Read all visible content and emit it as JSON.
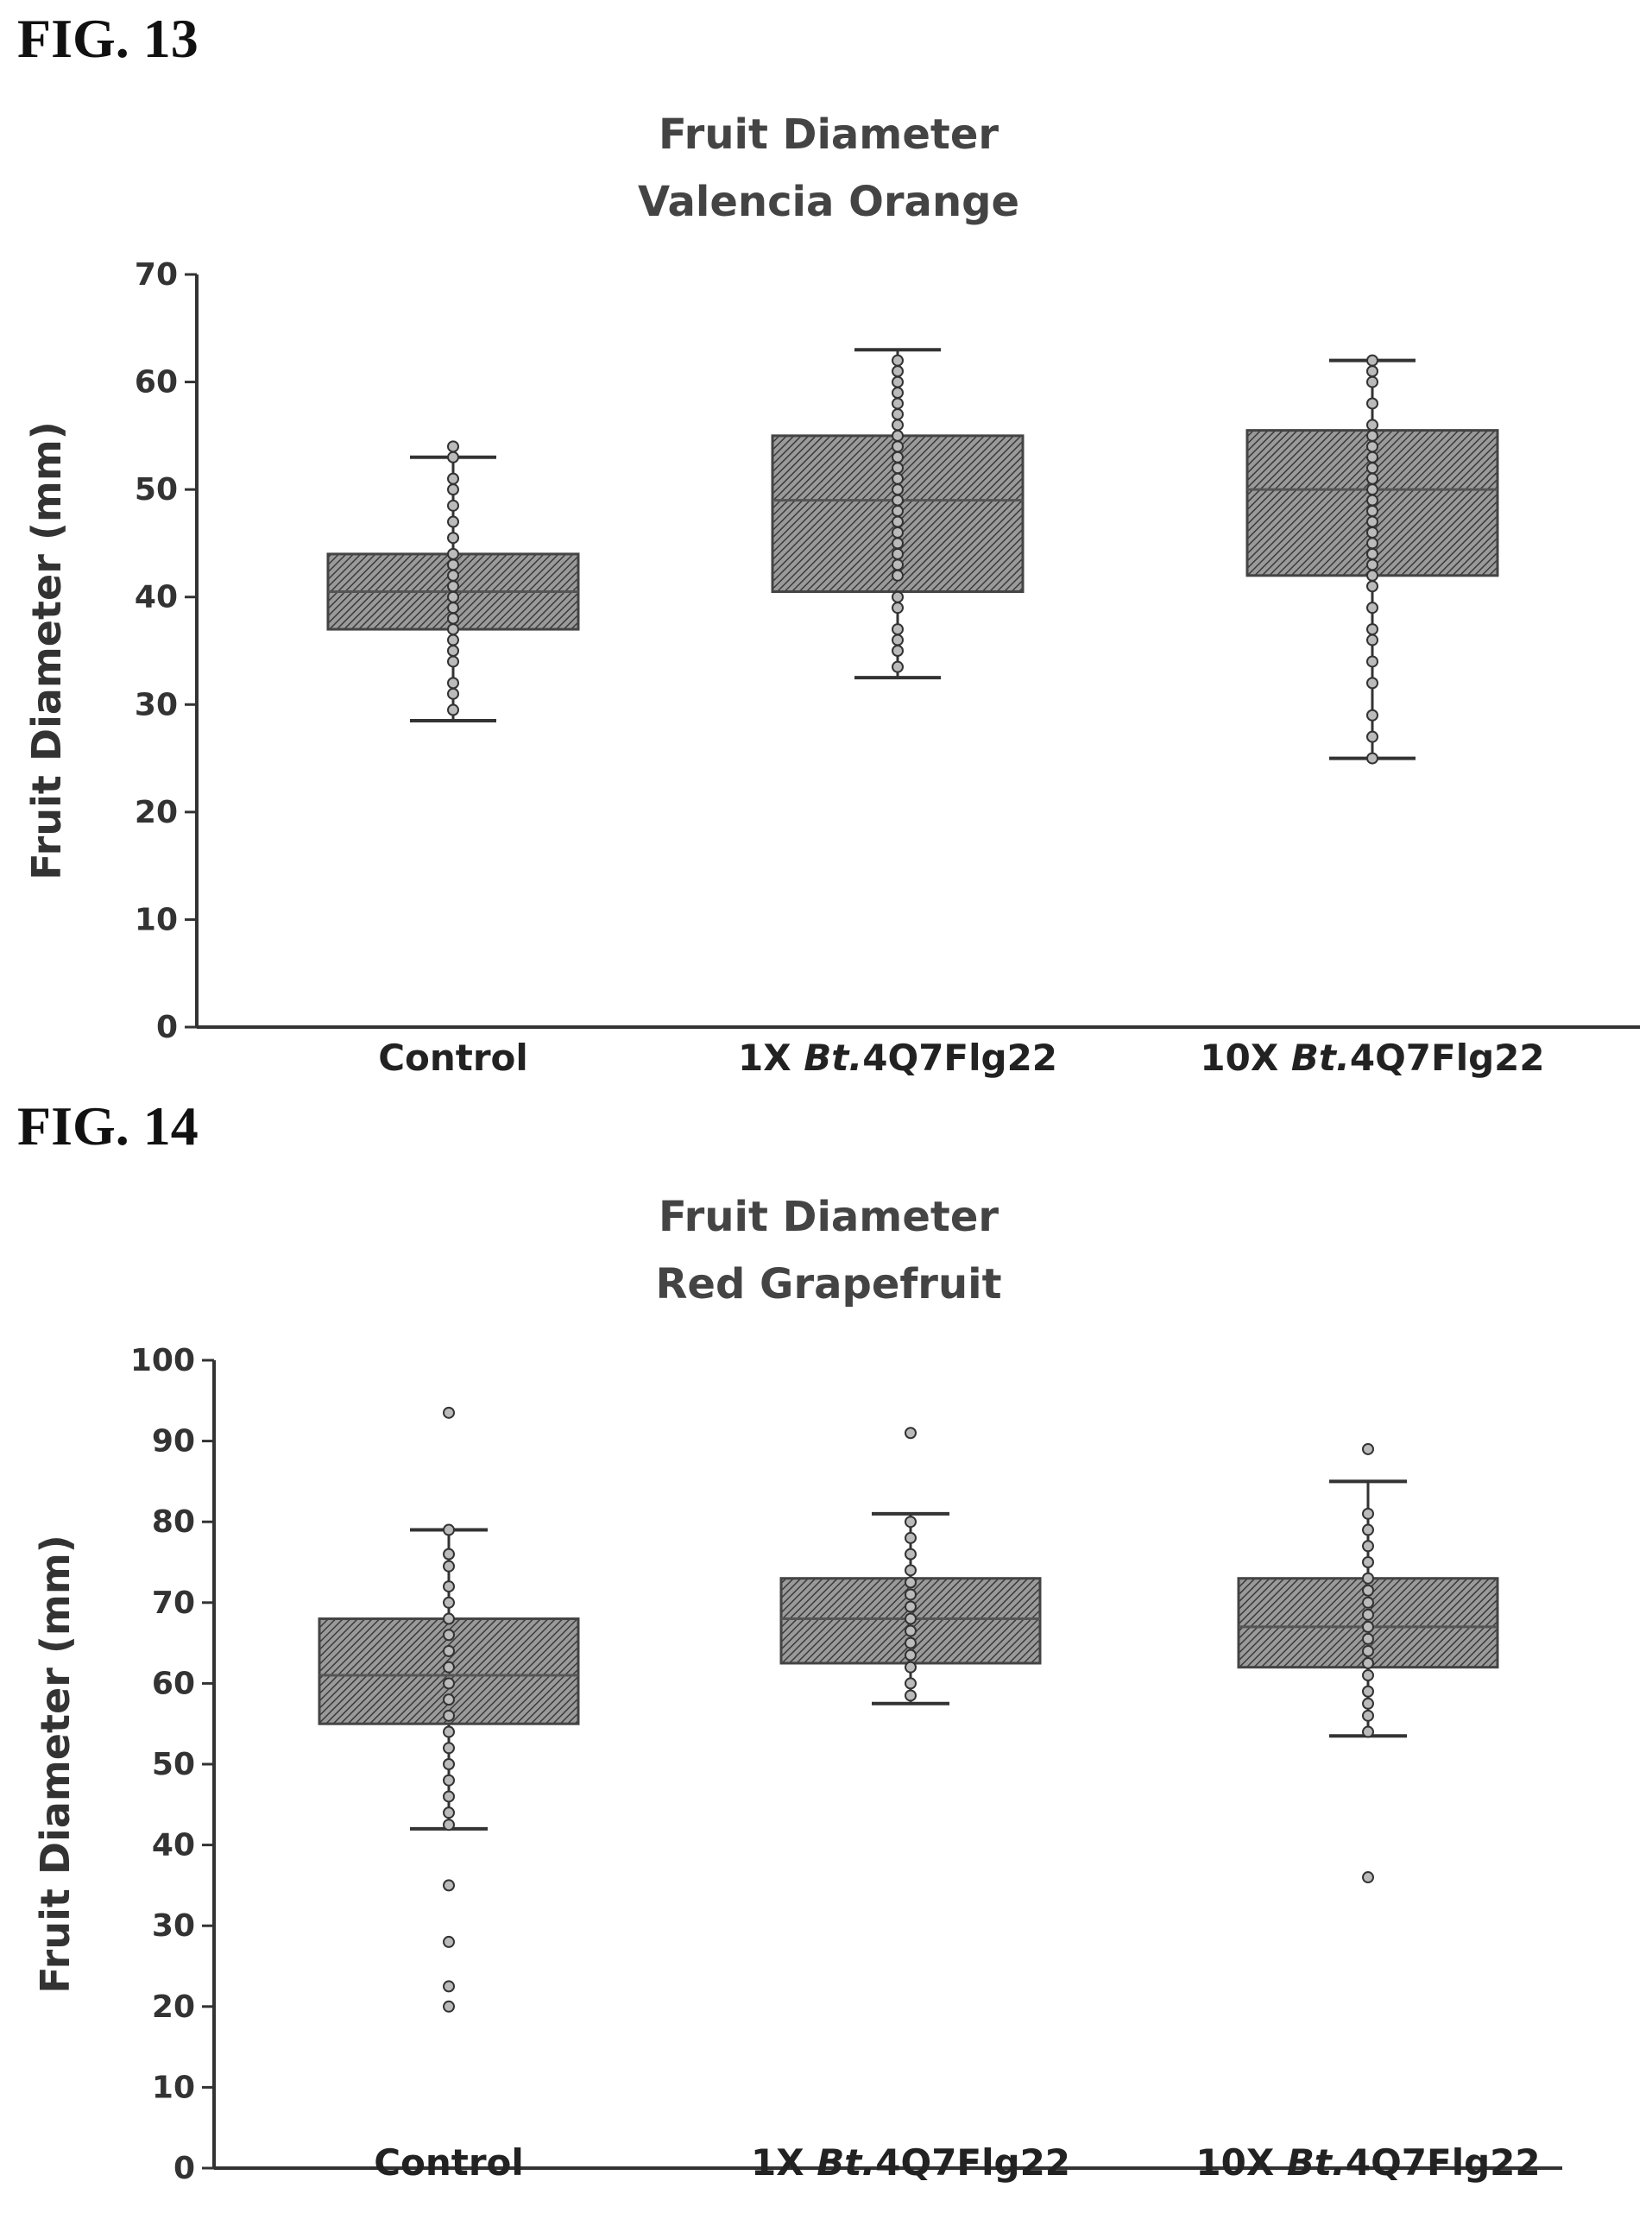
{
  "chart_data": [
    {
      "figure_label": "FIG. 13",
      "type": "box",
      "title": "Fruit Diameter",
      "subtitle": "Valencia Orange",
      "ylabel": "Fruit Diameter (mm)",
      "ylim": [
        0,
        70
      ],
      "yticks": [
        0,
        10,
        20,
        30,
        40,
        50,
        60,
        70
      ],
      "categories": [
        {
          "prefix": "Control",
          "italic": "",
          "suffix": ""
        },
        {
          "prefix": "1X ",
          "italic": "Bt.",
          "suffix": "4Q7Flg22"
        },
        {
          "prefix": "10X ",
          "italic": "Bt.",
          "suffix": "4Q7Flg22"
        }
      ],
      "boxes": [
        {
          "whisker_low": 28.5,
          "q1": 37,
          "median": 40.5,
          "q3": 44,
          "whisker_high": 53,
          "points": [
            29.5,
            31,
            32,
            34,
            35,
            36,
            37,
            38,
            39,
            40,
            41,
            42,
            43,
            44,
            45.5,
            47,
            48.5,
            50,
            51,
            53,
            54
          ]
        },
        {
          "whisker_low": 32.5,
          "q1": 40.5,
          "median": 49,
          "q3": 55,
          "whisker_high": 63,
          "points": [
            33.5,
            35,
            36,
            37,
            39,
            40,
            42,
            43,
            44,
            45,
            46,
            47,
            48,
            49,
            50,
            51,
            52,
            53,
            54,
            55,
            56,
            57,
            58,
            59,
            60,
            61,
            62
          ]
        },
        {
          "whisker_low": 25,
          "q1": 42,
          "median": 50,
          "q3": 55.5,
          "whisker_high": 62,
          "points": [
            25,
            27,
            29,
            32,
            34,
            36,
            37,
            39,
            41,
            42,
            43,
            44,
            45,
            46,
            47,
            48,
            49,
            50,
            51,
            52,
            53,
            54,
            55,
            56,
            58,
            60,
            61,
            62
          ]
        }
      ],
      "grid": false,
      "legend": "none"
    },
    {
      "figure_label": "FIG. 14",
      "type": "box",
      "title": "Fruit Diameter",
      "subtitle": "Red Grapefruit",
      "ylabel": "Fruit Diameter (mm)",
      "ylim": [
        0,
        100
      ],
      "yticks": [
        0,
        10,
        20,
        30,
        40,
        50,
        60,
        70,
        80,
        90,
        100
      ],
      "categories": [
        {
          "prefix": "Control",
          "italic": "",
          "suffix": ""
        },
        {
          "prefix": "1X ",
          "italic": "Bt.",
          "suffix": "4Q7Flg22"
        },
        {
          "prefix": "10X ",
          "italic": "Bt.",
          "suffix": "4Q7Flg22"
        }
      ],
      "boxes": [
        {
          "whisker_low": 42,
          "q1": 55,
          "median": 61,
          "q3": 68,
          "whisker_high": 79,
          "points": [
            20,
            22.5,
            28,
            35,
            42.5,
            44,
            46,
            48,
            50,
            52,
            54,
            56,
            58,
            60,
            62,
            64,
            66,
            68,
            70,
            72,
            74.5,
            76,
            79,
            93.5
          ]
        },
        {
          "whisker_low": 57.5,
          "q1": 62.5,
          "median": 68,
          "q3": 73,
          "whisker_high": 81,
          "points": [
            58.5,
            60,
            62,
            63.5,
            65,
            66.5,
            68,
            69.5,
            71,
            72.5,
            74,
            76,
            78,
            80,
            91
          ]
        },
        {
          "whisker_low": 53.5,
          "q1": 62,
          "median": 67,
          "q3": 73,
          "whisker_high": 85,
          "points": [
            36,
            54,
            56,
            57.5,
            59,
            61,
            62.5,
            64,
            65.5,
            67,
            68.5,
            70,
            71.5,
            73,
            75,
            77,
            79,
            81,
            89
          ]
        }
      ],
      "grid": false,
      "legend": "none"
    }
  ]
}
